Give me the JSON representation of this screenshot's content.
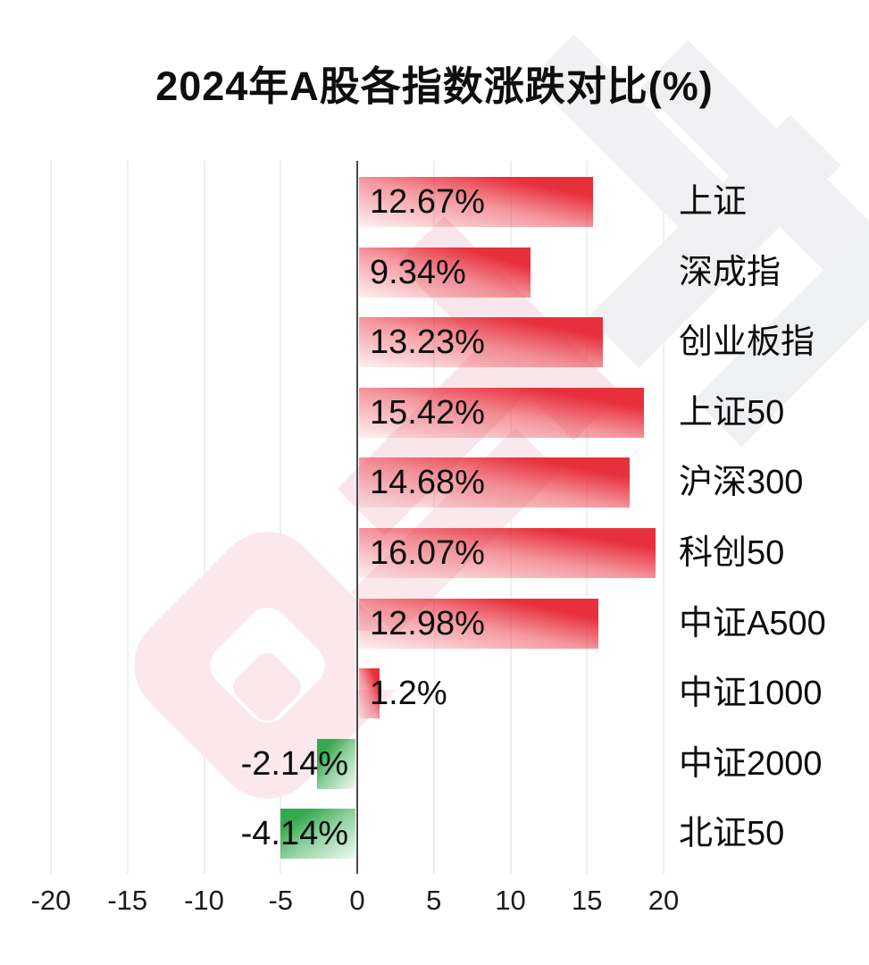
{
  "title": "2024年A股各指数涨跌对比(%)",
  "watermark": {
    "brand": "财联社"
  },
  "chart_data": {
    "type": "bar",
    "orientation": "horizontal",
    "title": "2024年A股各指数涨跌对比(%)",
    "categories": [
      "上证",
      "深成指",
      "创业板指",
      "上证50",
      "沪深300",
      "科创50",
      "中证A500",
      "中证1000",
      "中证2000",
      "北证50"
    ],
    "values": [
      12.67,
      9.34,
      13.23,
      15.42,
      14.68,
      16.07,
      12.98,
      1.2,
      -2.14,
      -4.14
    ],
    "value_labels": [
      "12.67%",
      "9.34%",
      "13.23%",
      "15.42%",
      "14.68%",
      "16.07%",
      "12.98%",
      "1.2%",
      "-2.14%",
      "-4.14%"
    ],
    "x_ticks": [
      -20,
      -15,
      -10,
      -5,
      0,
      5,
      10,
      15,
      20
    ],
    "xlim": [
      -20,
      20
    ],
    "xlabel": "",
    "ylabel": "",
    "grid": true,
    "legend": "none",
    "colors": {
      "positive": "#e8303d",
      "positive_fade": "#fdeef0",
      "negative": "#35a94f",
      "negative_fade": "#eef8f0"
    }
  }
}
